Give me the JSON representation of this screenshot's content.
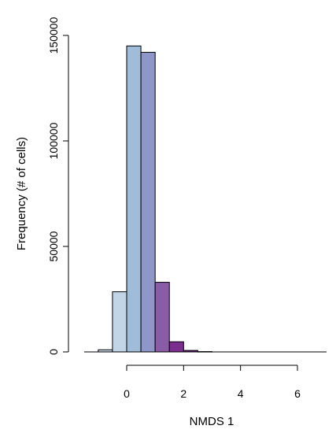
{
  "chart_data": {
    "type": "bar",
    "xlabel": "NMDS 1",
    "ylabel": "Frequency (# of cells)",
    "xlim": [
      -1.5,
      7
    ],
    "ylim": [
      0,
      150000
    ],
    "x_ticks": [
      0,
      2,
      4,
      6
    ],
    "y_ticks": [
      0,
      50000,
      100000,
      150000
    ],
    "grid": false,
    "bins": [
      {
        "start": -1.0,
        "end": -0.5,
        "value": 1000,
        "color": "#c9d8ea"
      },
      {
        "start": -0.5,
        "end": 0.0,
        "value": 28500,
        "color": "#c1d5e6"
      },
      {
        "start": 0.0,
        "end": 0.5,
        "value": 145000,
        "color": "#9fbcd9"
      },
      {
        "start": 0.5,
        "end": 1.0,
        "value": 142000,
        "color": "#8f96c8"
      },
      {
        "start": 1.0,
        "end": 1.5,
        "value": 33000,
        "color": "#8b5ca6"
      },
      {
        "start": 1.5,
        "end": 2.0,
        "value": 4800,
        "color": "#7a2f8f"
      },
      {
        "start": 2.0,
        "end": 2.5,
        "value": 700,
        "color": "#6a1a7f"
      },
      {
        "start": 2.5,
        "end": 3.0,
        "value": 150,
        "color": "#5a0f6e"
      }
    ]
  }
}
